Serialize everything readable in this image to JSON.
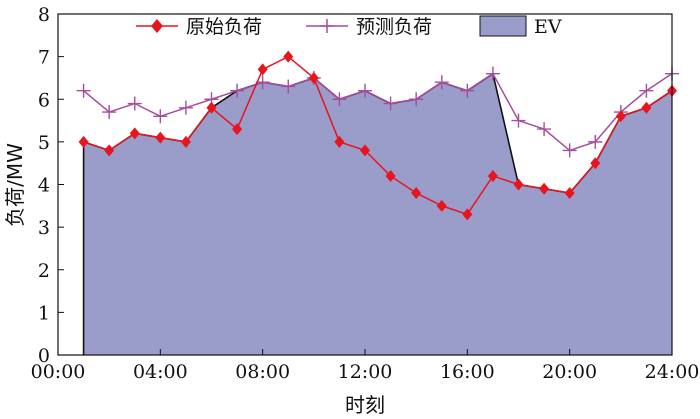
{
  "chart_data": {
    "type": "line",
    "xlabel": "时刻",
    "ylabel": "负荷/MW",
    "ylim": [
      0,
      8
    ],
    "yticks": [
      "0",
      "1",
      "2",
      "3",
      "4",
      "5",
      "6",
      "7",
      "8"
    ],
    "xlim": [
      0,
      24
    ],
    "xtick_values": [
      0,
      4,
      8,
      12,
      16,
      20,
      24
    ],
    "xticks": [
      "00:00",
      "04:00",
      "08:00",
      "12:00",
      "16:00",
      "20:00",
      "24:00"
    ],
    "legend_position": "top",
    "x": [
      1,
      2,
      3,
      4,
      5,
      6,
      7,
      8,
      9,
      10,
      11,
      12,
      13,
      14,
      15,
      16,
      17,
      18,
      19,
      20,
      21,
      22,
      23,
      24
    ],
    "series": [
      {
        "name": "原始负荷",
        "color": "#e8141e",
        "marker": "diamond",
        "values": [
          5.0,
          4.8,
          5.2,
          5.1,
          5.0,
          5.8,
          5.3,
          6.7,
          7.0,
          6.5,
          5.0,
          4.8,
          4.2,
          3.8,
          3.5,
          3.3,
          4.2,
          4.0,
          3.9,
          3.8,
          4.5,
          5.6,
          5.8,
          6.2
        ]
      },
      {
        "name": "预测负荷",
        "color": "#a64d9e",
        "marker": "plus",
        "values": [
          6.2,
          5.7,
          5.9,
          5.6,
          5.8,
          6.0,
          6.2,
          6.4,
          6.3,
          6.5,
          6.0,
          6.2,
          5.9,
          6.0,
          6.4,
          6.2,
          6.6,
          5.5,
          5.3,
          4.8,
          5.0,
          5.7,
          6.2,
          6.6
        ]
      },
      {
        "name": "EV",
        "type": "area",
        "fill": "#9a9cca",
        "edge": "#111111",
        "values": [
          5.0,
          4.8,
          5.2,
          5.1,
          5.0,
          5.8,
          6.2,
          6.4,
          6.3,
          6.5,
          6.0,
          6.2,
          5.9,
          6.0,
          6.4,
          6.2,
          6.6,
          4.0,
          3.9,
          3.8,
          4.5,
          5.6,
          5.8,
          6.2
        ]
      }
    ]
  }
}
